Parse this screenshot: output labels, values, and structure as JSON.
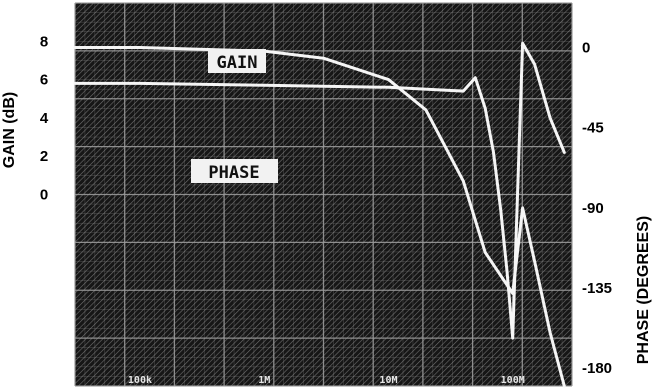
{
  "chart_data": {
    "type": "line",
    "x_scale": "log",
    "x_ticks": [
      "100k",
      "1M",
      "10M",
      "100M"
    ],
    "xlim": [
      30000,
      300000000
    ],
    "left_axis": {
      "label": "GAIN (dB)",
      "ticks": [
        "8",
        "6",
        "4",
        "2",
        "0"
      ],
      "ylim": [
        -10,
        10
      ]
    },
    "right_axis": {
      "label": "PHASE (DEGREES)",
      "ticks": [
        "0",
        "-45",
        "-90",
        "-135",
        "-180"
      ],
      "ylim": [
        -190,
        25
      ]
    },
    "trace_labels": {
      "gain": "GAIN",
      "phase": "PHASE"
    },
    "series": [
      {
        "name": "GAIN",
        "axis": "left",
        "x": [
          30000,
          100000,
          1000000,
          10000000,
          40000000,
          50000000,
          60000000,
          70000000,
          80000000,
          90000000,
          100000000,
          120000000,
          150000000,
          200000000,
          260000000
        ],
        "y": [
          5.8,
          5.8,
          5.7,
          5.6,
          5.4,
          6.1,
          4.5,
          2.2,
          -0.8,
          -4.0,
          -7.5,
          7.9,
          6.8,
          4.0,
          2.2
        ]
      },
      {
        "name": "PHASE",
        "axis": "right",
        "x": [
          30000,
          100000,
          1000000,
          3000000,
          10000000,
          20000000,
          40000000,
          60000000,
          80000000,
          100000000,
          120000000,
          150000000,
          200000000,
          260000000
        ],
        "y": [
          0,
          0,
          -2,
          -6,
          -18,
          -35,
          -75,
          -115,
          -128,
          -138,
          -90,
          -120,
          -160,
          -190
        ]
      }
    ],
    "grid": true,
    "background": "#1b1b1b",
    "line_color": "#f5f5f5",
    "grid_color": "#9a9a9a"
  }
}
